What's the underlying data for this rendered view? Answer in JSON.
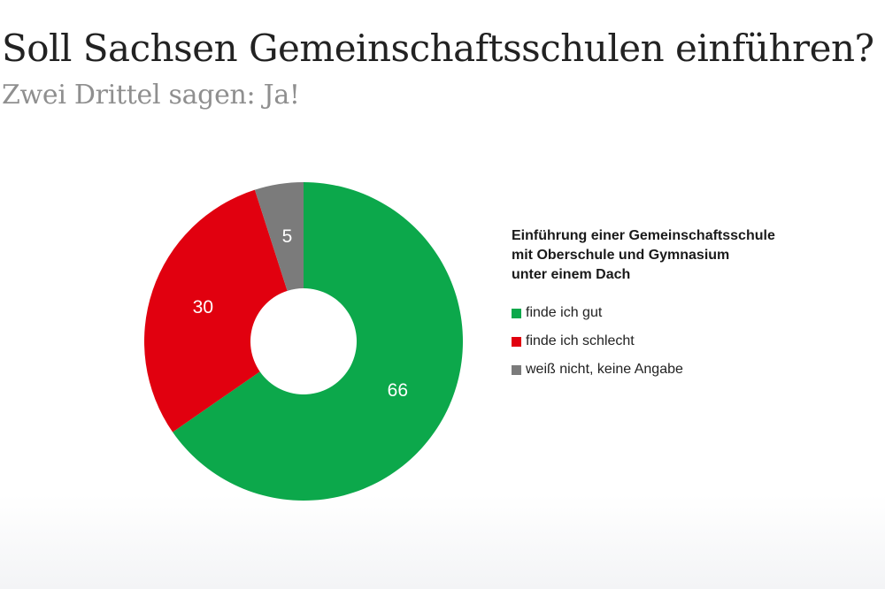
{
  "header": {
    "title": "Soll Sachsen Gemeinschaftsschulen einführen?",
    "subtitle": "Zwei Drittel sagen: Ja!"
  },
  "legend": {
    "title_lines": [
      "Einführung einer Gemeinschaftsschule",
      "mit Oberschule und Gymnasium",
      "unter einem Dach"
    ]
  },
  "chart_data": {
    "type": "pie",
    "donut": true,
    "title": "Soll Sachsen Gemeinschaftsschulen einführen?",
    "subtitle": "Zwei Drittel sagen: Ja!",
    "legend_title": "Einführung einer Gemeinschaftsschule mit Oberschule und Gymnasium unter einem Dach",
    "legend_position": "right",
    "categories": [
      "finde ich gut",
      "finde ich schlecht",
      "weiß nicht, keine Angabe"
    ],
    "values": [
      66,
      30,
      5
    ],
    "labels": [
      "66",
      "30",
      "5"
    ],
    "colors": [
      "#0ca84b",
      "#e1000f",
      "#7b7b7b"
    ]
  }
}
